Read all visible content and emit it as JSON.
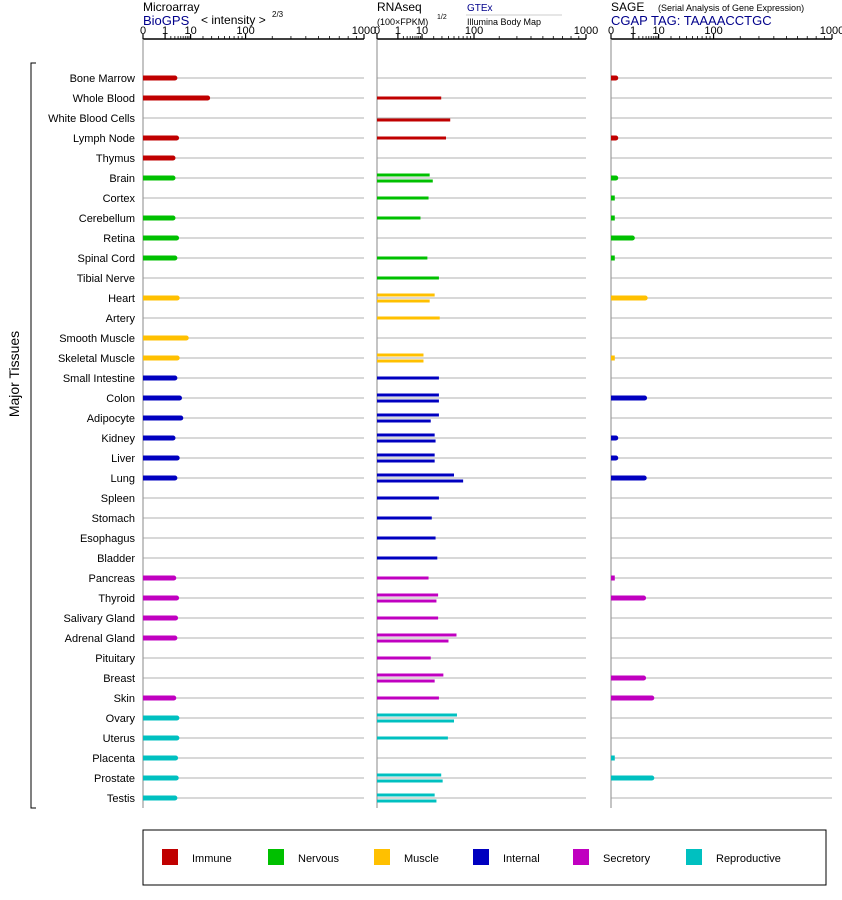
{
  "header": {
    "microarray_title": "Microarray",
    "biogps_link": "BioGPS",
    "intensity_label": "< intensity >",
    "intensity_exp": "2/3",
    "rnaseq_title": "RNAseq",
    "fpkm_label": "(100×FPKM)",
    "fpkm_exp": "1/2",
    "gtex_link": "GTEx",
    "illumina_label": "Illumina Body Map",
    "sage_title": "SAGE",
    "sage_subtitle": "(Serial Analysis of Gene Expression)",
    "sage_tag_link": "CGAP  TAG: TAAAACCTGC"
  },
  "axis_label": "Major Tissues",
  "colors": {
    "Immune": "#c00000",
    "Nervous": "#00c000",
    "Muscle": "#ffc000",
    "Internal": "#0000c0",
    "Secretory": "#c000c0",
    "Reproductive": "#00c0c0",
    "link": "#00008b"
  },
  "legend": [
    {
      "label": "Immune",
      "color": "#c00000"
    },
    {
      "label": "Nervous",
      "color": "#00c000"
    },
    {
      "label": "Muscle",
      "color": "#ffc000"
    },
    {
      "label": "Internal",
      "color": "#0000c0"
    },
    {
      "label": "Secretory",
      "color": "#c000c0"
    },
    {
      "label": "Reproductive",
      "color": "#00c0c0"
    }
  ],
  "chart_data": {
    "type": "bar",
    "orientation": "horizontal",
    "xscale": "power",
    "xlim": [
      0,
      1000
    ],
    "xticks": [
      "0",
      "1",
      "10",
      "100",
      "1000"
    ],
    "panels": [
      {
        "name": "Microarray",
        "xticks": [
          "0",
          "1",
          "10",
          "100",
          "1000"
        ]
      },
      {
        "name": "RNAseq",
        "xticks": [
          "0",
          "1",
          "10",
          "100",
          "1000"
        ]
      },
      {
        "name": "SAGE",
        "xticks": [
          "0",
          "1",
          "10",
          "100",
          "1000"
        ]
      }
    ],
    "tissues": [
      {
        "name": "Bone Marrow",
        "group": "Immune",
        "microarray": 3.0,
        "rnaseq": [],
        "sage": [
          0.01
        ]
      },
      {
        "name": "Whole Blood",
        "group": "Immune",
        "microarray": 25,
        "rnaseq": [
          29
        ],
        "sage": []
      },
      {
        "name": "White Blood Cells",
        "group": "Immune",
        "microarray": null,
        "rnaseq": [
          43
        ],
        "sage": []
      },
      {
        "name": "Lymph Node",
        "group": "Immune",
        "microarray": 3.5,
        "rnaseq": [
          36
        ],
        "sage": [
          0.01
        ]
      },
      {
        "name": "Thymus",
        "group": "Immune",
        "microarray": 2.5,
        "rnaseq": [],
        "sage": []
      },
      {
        "name": "Brain",
        "group": "Nervous",
        "microarray": 2.5,
        "rnaseq": [
          16,
          19
        ],
        "sage": [
          0.01
        ]
      },
      {
        "name": "Cortex",
        "group": "Nervous",
        "microarray": null,
        "rnaseq": [
          15
        ],
        "sage": [
          0.005
        ]
      },
      {
        "name": "Cerebellum",
        "group": "Nervous",
        "microarray": 2.5,
        "rnaseq": [
          9
        ],
        "sage": [
          0.005
        ]
      },
      {
        "name": "Retina",
        "group": "Nervous",
        "microarray": 3.5,
        "rnaseq": [],
        "sage": [
          0.9
        ]
      },
      {
        "name": "Spinal Cord",
        "group": "Nervous",
        "microarray": 3.0,
        "rnaseq": [
          14
        ],
        "sage": [
          0.005
        ]
      },
      {
        "name": "Tibial Nerve",
        "group": "Nervous",
        "microarray": null,
        "rnaseq": [
          26
        ],
        "sage": []
      },
      {
        "name": "Heart",
        "group": "Muscle",
        "microarray": 3.7,
        "rnaseq": [
          21,
          16
        ],
        "sage": [
          3.7
        ]
      },
      {
        "name": "Artery",
        "group": "Muscle",
        "microarray": null,
        "rnaseq": [
          27
        ],
        "sage": []
      },
      {
        "name": "Smooth Muscle",
        "group": "Muscle",
        "microarray": 7.5,
        "rnaseq": [],
        "sage": []
      },
      {
        "name": "Skeletal Muscle",
        "group": "Muscle",
        "microarray": 3.7,
        "rnaseq": [
          11,
          11
        ],
        "sage": [
          0.005
        ]
      },
      {
        "name": "Small Intestine",
        "group": "Internal",
        "microarray": 3.0,
        "rnaseq": [
          26
        ],
        "sage": []
      },
      {
        "name": "Colon",
        "group": "Internal",
        "microarray": 4.5,
        "rnaseq": [
          26,
          26
        ],
        "sage": [
          3.5
        ]
      },
      {
        "name": "Adipocyte",
        "group": "Internal",
        "microarray": 5.0,
        "rnaseq": [
          26,
          17
        ],
        "sage": []
      },
      {
        "name": "Kidney",
        "group": "Internal",
        "microarray": 2.5,
        "rnaseq": [
          21,
          22
        ],
        "sage": [
          0.01
        ]
      },
      {
        "name": "Liver",
        "group": "Internal",
        "microarray": 3.7,
        "rnaseq": [
          21,
          21
        ],
        "sage": [
          0.01
        ]
      },
      {
        "name": "Lung",
        "group": "Internal",
        "microarray": 3.0,
        "rnaseq": [
          50,
          70
        ],
        "sage": [
          3.4
        ]
      },
      {
        "name": "Spleen",
        "group": "Internal",
        "microarray": null,
        "rnaseq": [
          26
        ],
        "sage": []
      },
      {
        "name": "Stomach",
        "group": "Internal",
        "microarray": null,
        "rnaseq": [
          18
        ],
        "sage": []
      },
      {
        "name": "Esophagus",
        "group": "Internal",
        "microarray": null,
        "rnaseq": [
          22
        ],
        "sage": []
      },
      {
        "name": "Bladder",
        "group": "Internal",
        "microarray": null,
        "rnaseq": [
          24
        ],
        "sage": []
      },
      {
        "name": "Pancreas",
        "group": "Secretory",
        "microarray": 2.7,
        "rnaseq": [
          15
        ],
        "sage": [
          0.005
        ]
      },
      {
        "name": "Thyroid",
        "group": "Secretory",
        "microarray": 3.5,
        "rnaseq": [
          25,
          23
        ],
        "sage": [
          3.2
        ]
      },
      {
        "name": "Salivary Gland",
        "group": "Secretory",
        "microarray": 3.2,
        "rnaseq": [
          25
        ],
        "sage": []
      },
      {
        "name": "Adrenal Gland",
        "group": "Secretory",
        "microarray": 3.0,
        "rnaseq": [
          55,
          40
        ],
        "sage": []
      },
      {
        "name": "Pituitary",
        "group": "Secretory",
        "microarray": null,
        "rnaseq": [
          17
        ],
        "sage": []
      },
      {
        "name": "Breast",
        "group": "Secretory",
        "microarray": null,
        "rnaseq": [
          32,
          21
        ],
        "sage": [
          3.2
        ]
      },
      {
        "name": "Skin",
        "group": "Secretory",
        "microarray": 2.7,
        "rnaseq": [
          26
        ],
        "sage": [
          6.3
        ]
      },
      {
        "name": "Ovary",
        "group": "Reproductive",
        "microarray": 3.6,
        "rnaseq": [
          56,
          50
        ],
        "sage": []
      },
      {
        "name": "Uterus",
        "group": "Reproductive",
        "microarray": 3.6,
        "rnaseq": [
          39
        ],
        "sage": []
      },
      {
        "name": "Placenta",
        "group": "Reproductive",
        "microarray": 3.2,
        "rnaseq": [],
        "sage": [
          0.005
        ]
      },
      {
        "name": "Prostate",
        "group": "Reproductive",
        "microarray": 3.4,
        "rnaseq": [
          29,
          31
        ],
        "sage": [
          6.3
        ]
      },
      {
        "name": "Testis",
        "group": "Reproductive",
        "microarray": 3.0,
        "rnaseq": [
          21,
          23
        ],
        "sage": []
      }
    ]
  }
}
